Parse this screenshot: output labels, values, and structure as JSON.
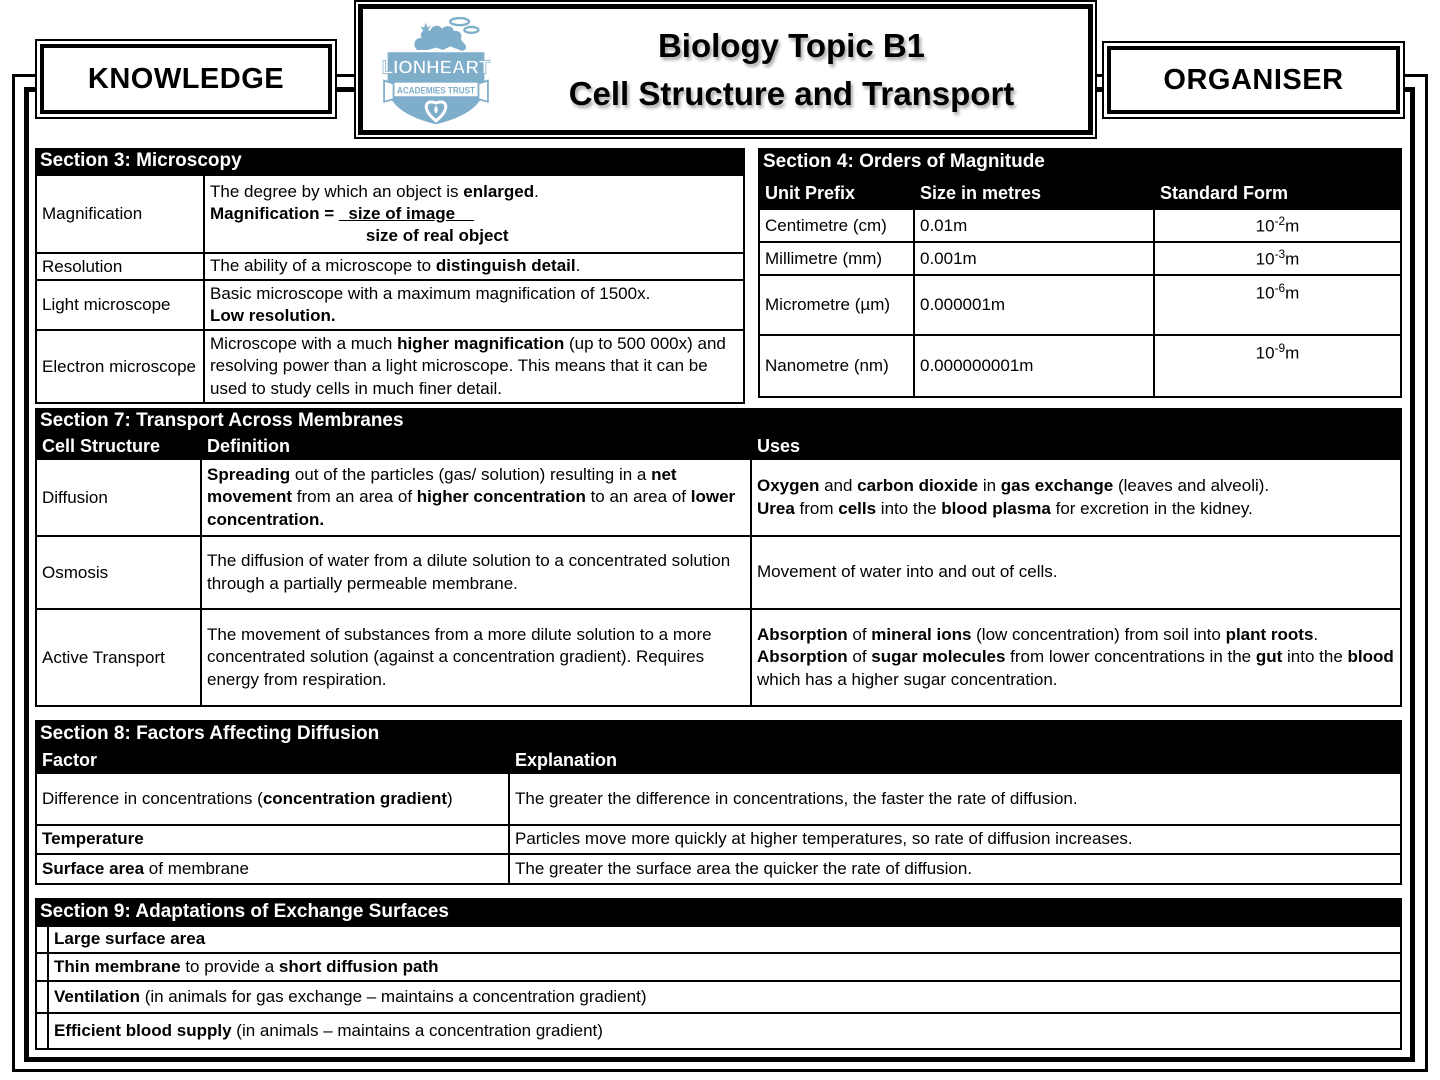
{
  "colors": {
    "accent_blue": "#7FAECB",
    "bar_bg": "#000000",
    "bar_text": "#FFFFFF"
  },
  "header": {
    "knowledge_label": "KNOWLEDGE",
    "organiser_label": "ORGANISER",
    "title_line1": "Biology Topic B1",
    "title_line2": "Cell Structure and Transport",
    "logo": {
      "line1": "LIONHEART",
      "line2": "ACADEMIES TRUST"
    }
  },
  "section3": {
    "title": "Section 3: Microscopy",
    "rows": [
      {
        "term": "Magnification",
        "definition": [
          [
            {
              "t": "The degree by which an object is "
            },
            {
              "t": "enlarged",
              "b": true
            },
            {
              "t": "."
            }
          ],
          [
            {
              "t": "Magnification = ",
              "b": true
            },
            {
              "t": "  size of image    ",
              "b": true,
              "u": true
            }
          ],
          [
            {
              "t": "                                 "
            },
            {
              "t": "size of real object",
              "b": true
            }
          ]
        ]
      },
      {
        "term": "Resolution",
        "definition": [
          [
            {
              "t": "The ability of a microscope to "
            },
            {
              "t": "distinguish detail",
              "b": true
            },
            {
              "t": "."
            }
          ]
        ]
      },
      {
        "term": "Light microscope",
        "definition": [
          [
            {
              "t": "Basic microscope with a maximum magnification of 1500x."
            }
          ],
          [
            {
              "t": "Low resolution.",
              "b": true
            }
          ]
        ]
      },
      {
        "term": "Electron microscope",
        "definition": [
          [
            {
              "t": "Microscope with a much "
            },
            {
              "t": "higher magnification",
              "b": true
            },
            {
              "t": " (up to 500 000x) and resolving power than a light microscope. This means that it can be used to study cells in much finer detail."
            }
          ]
        ]
      }
    ]
  },
  "section4": {
    "title": "Section 4: Orders of Magnitude",
    "headers": [
      "Unit Prefix",
      "Size in metres",
      "Standard Form"
    ],
    "rows": [
      {
        "prefix": "Centimetre (cm)",
        "size": "0.01m",
        "standard": [
          [
            {
              "t": "10"
            },
            {
              "t": "-2",
              "sup": true
            },
            {
              "t": "m"
            }
          ]
        ]
      },
      {
        "prefix": "Millimetre (mm)",
        "size": "0.001m",
        "standard": [
          [
            {
              "t": "10"
            },
            {
              "t": "-3",
              "sup": true
            },
            {
              "t": "m"
            }
          ]
        ]
      },
      {
        "prefix": "Micrometre (µm)",
        "size": "0.000001m",
        "standard": [
          [
            {
              "t": "10"
            },
            {
              "t": "-6",
              "sup": true
            },
            {
              "t": "m"
            }
          ]
        ]
      },
      {
        "prefix": "Nanometre (nm)",
        "size": "0.000000001m",
        "standard": [
          [
            {
              "t": "10"
            },
            {
              "t": "-9",
              "sup": true
            },
            {
              "t": "m"
            }
          ]
        ]
      }
    ]
  },
  "section7": {
    "title": "Section 7: Transport Across Membranes",
    "headers": [
      "Cell Structure",
      "Definition",
      "Uses"
    ],
    "rows": [
      {
        "structure": "Diffusion",
        "definition": [
          [
            {
              "t": "Spreading",
              "b": true
            },
            {
              "t": " out of the particles (gas/ solution) resulting in a "
            },
            {
              "t": "net movement",
              "b": true
            },
            {
              "t": " from an area of "
            },
            {
              "t": "higher concentration",
              "b": true
            },
            {
              "t": " to an area of "
            },
            {
              "t": "lower concentration.",
              "b": true
            }
          ]
        ],
        "uses": [
          [
            {
              "t": "Oxygen",
              "b": true
            },
            {
              "t": " and "
            },
            {
              "t": "carbon dioxide",
              "b": true
            },
            {
              "t": " in "
            },
            {
              "t": "gas exchange",
              "b": true
            },
            {
              "t": " (leaves and alveoli)."
            }
          ],
          [
            {
              "t": "Urea",
              "b": true
            },
            {
              "t": " from "
            },
            {
              "t": "cells",
              "b": true
            },
            {
              "t": " into the "
            },
            {
              "t": "blood plasma",
              "b": true
            },
            {
              "t": " for excretion in the kidney."
            }
          ]
        ]
      },
      {
        "structure": "Osmosis",
        "definition": [
          [
            {
              "t": "The diffusion of water from a dilute solution to a concentrated solution through a partially permeable membrane."
            }
          ]
        ],
        "uses": [
          [
            {
              "t": "Movement of water into and out of cells."
            }
          ]
        ]
      },
      {
        "structure": "Active Transport",
        "definition": [
          [
            {
              "t": "The movement of substances from a more dilute solution to a more concentrated solution (against a concentration gradient). Requires energy from respiration."
            }
          ]
        ],
        "uses": [
          [
            {
              "t": "Absorption",
              "b": true
            },
            {
              "t": " of "
            },
            {
              "t": "mineral ions",
              "b": true
            },
            {
              "t": " (low concentration) from soil into "
            },
            {
              "t": "plant roots",
              "b": true
            },
            {
              "t": "."
            }
          ],
          [
            {
              "t": "Absorption",
              "b": true
            },
            {
              "t": " of "
            },
            {
              "t": "sugar molecules",
              "b": true
            },
            {
              "t": " from lower concentrations in the "
            },
            {
              "t": "gut",
              "b": true
            },
            {
              "t": " into the "
            },
            {
              "t": "blood",
              "b": true
            },
            {
              "t": " which has a higher sugar concentration."
            }
          ]
        ]
      }
    ]
  },
  "section8": {
    "title": "Section 8: Factors Affecting Diffusion",
    "headers": [
      "Factor",
      "Explanation"
    ],
    "rows": [
      {
        "factor": [
          [
            {
              "t": "Difference in concentrations ("
            },
            {
              "t": "concentration gradient",
              "b": true
            },
            {
              "t": ")"
            }
          ]
        ],
        "explanation": [
          [
            {
              "t": "The greater the difference in concentrations, the faster the rate of diffusion."
            }
          ]
        ]
      },
      {
        "factor": [
          [
            {
              "t": "Temperature",
              "b": true
            }
          ]
        ],
        "explanation": [
          [
            {
              "t": "Particles move more quickly at higher temperatures, so rate of diffusion increases."
            }
          ]
        ]
      },
      {
        "factor": [
          [
            {
              "t": "Surface area",
              "b": true
            },
            {
              "t": " of membrane"
            }
          ]
        ],
        "explanation": [
          [
            {
              "t": "The greater the surface area the quicker the rate of diffusion."
            }
          ]
        ]
      }
    ]
  },
  "section9": {
    "title": "Section 9: Adaptations of Exchange Surfaces",
    "items": [
      [
        [
          {
            "t": "Large surface area",
            "b": true
          }
        ]
      ],
      [
        [
          {
            "t": "Thin membrane",
            "b": true
          },
          {
            "t": " to provide a "
          },
          {
            "t": "short diffusion path",
            "b": true
          }
        ]
      ],
      [
        [
          {
            "t": "Ventilation",
            "b": true
          },
          {
            "t": " (in animals for gas exchange – maintains a concentration gradient)"
          }
        ]
      ],
      [
        [
          {
            "t": "Efficient blood supply",
            "b": true
          },
          {
            "t": " (in animals – maintains a concentration gradient)"
          }
        ]
      ]
    ]
  }
}
